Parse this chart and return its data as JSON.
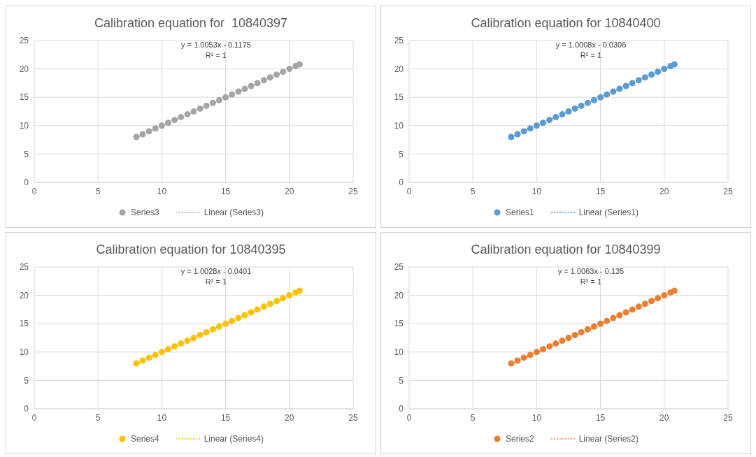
{
  "chart_data": [
    {
      "type": "scatter",
      "title": "Calibration equation for  10840397",
      "annotations": [
        "y = 1.0053x - 0.1175",
        "R² = 1"
      ],
      "xlim": [
        0,
        25
      ],
      "ylim": [
        0,
        25
      ],
      "xticks": [
        0,
        5,
        10,
        15,
        20,
        25
      ],
      "yticks": [
        0,
        5,
        10,
        15,
        20,
        25
      ],
      "grid": true,
      "legend": "bottom",
      "series": [
        {
          "name": "Series3",
          "marker": "circle",
          "color": "#a5a5a5",
          "x": [
            8,
            8.5,
            9,
            9.5,
            10,
            10.5,
            11,
            11.5,
            12,
            12.5,
            13,
            13.5,
            14,
            14.5,
            15,
            15.5,
            16,
            16.5,
            17,
            17.5,
            18,
            18.5,
            19,
            19.5,
            20,
            20.5,
            20.8
          ],
          "values": [
            8,
            8.5,
            9,
            9.5,
            10,
            10.5,
            11,
            11.5,
            12,
            12.5,
            13,
            13.5,
            14,
            14.5,
            15,
            15.5,
            16,
            16.5,
            17,
            17.5,
            18,
            18.5,
            19,
            19.5,
            20,
            20.5,
            20.8
          ]
        },
        {
          "name": "Linear (Series3)",
          "type": "line",
          "line_style": "dotted",
          "color": "#a5a5a5",
          "x": [
            8,
            20.8
          ],
          "values": [
            7.9,
            20.8
          ]
        }
      ]
    },
    {
      "type": "scatter",
      "title": "Calibration equation for 10840400",
      "annotations": [
        "y = 1.0008x - 0.0306",
        "R² = 1"
      ],
      "xlim": [
        0,
        25
      ],
      "ylim": [
        0,
        25
      ],
      "xticks": [
        0,
        5,
        10,
        15,
        20,
        25
      ],
      "yticks": [
        0,
        5,
        10,
        15,
        20,
        25
      ],
      "grid": true,
      "legend": "bottom",
      "series": [
        {
          "name": "Series1",
          "marker": "circle",
          "color": "#5b9bd5",
          "x": [
            8,
            8.5,
            9,
            9.5,
            10,
            10.5,
            11,
            11.5,
            12,
            12.5,
            13,
            13.5,
            14,
            14.5,
            15,
            15.5,
            16,
            16.5,
            17,
            17.5,
            18,
            18.5,
            19,
            19.5,
            20,
            20.5,
            20.8
          ],
          "values": [
            8,
            8.5,
            9,
            9.5,
            10,
            10.5,
            11,
            11.5,
            12,
            12.5,
            13,
            13.5,
            14,
            14.5,
            15,
            15.5,
            16,
            16.5,
            17,
            17.5,
            18,
            18.5,
            19,
            19.5,
            20,
            20.5,
            20.8
          ]
        },
        {
          "name": "Linear (Series1)",
          "type": "line",
          "line_style": "dotted",
          "color": "#5b9bd5",
          "x": [
            8,
            20.8
          ],
          "values": [
            8,
            20.8
          ]
        }
      ]
    },
    {
      "type": "scatter",
      "title": "Calibration equation for 10840395",
      "annotations": [
        "y = 1.0028x - 0.0401",
        "R² = 1"
      ],
      "xlim": [
        0,
        25
      ],
      "ylim": [
        0,
        25
      ],
      "xticks": [
        0,
        5,
        10,
        15,
        20,
        25
      ],
      "yticks": [
        0,
        5,
        10,
        15,
        20,
        25
      ],
      "grid": true,
      "legend": "bottom",
      "series": [
        {
          "name": "Series4",
          "marker": "circle",
          "color": "#ffc000",
          "x": [
            8,
            8.5,
            9,
            9.5,
            10,
            10.5,
            11,
            11.5,
            12,
            12.5,
            13,
            13.5,
            14,
            14.5,
            15,
            15.5,
            16,
            16.5,
            17,
            17.5,
            18,
            18.5,
            19,
            19.5,
            20,
            20.5,
            20.8
          ],
          "values": [
            8,
            8.5,
            9,
            9.5,
            10,
            10.5,
            11,
            11.5,
            12,
            12.5,
            13,
            13.5,
            14,
            14.5,
            15,
            15.5,
            16,
            16.5,
            17,
            17.5,
            18,
            18.5,
            19,
            19.5,
            20,
            20.5,
            20.8
          ]
        },
        {
          "name": "Linear (Series4)",
          "type": "line",
          "line_style": "dotted",
          "color": "#ffc000",
          "x": [
            8,
            20.8
          ],
          "values": [
            8,
            20.8
          ]
        }
      ]
    },
    {
      "type": "scatter",
      "title": "Calibration equation for 10840399",
      "annotations": [
        "y = 1.0063x - 0.135",
        "R² = 1"
      ],
      "xlim": [
        0,
        25
      ],
      "ylim": [
        0,
        25
      ],
      "xticks": [
        0,
        5,
        10,
        15,
        20,
        25
      ],
      "yticks": [
        0,
        5,
        10,
        15,
        20,
        25
      ],
      "grid": true,
      "legend": "bottom",
      "series": [
        {
          "name": "Series2",
          "marker": "circle",
          "color": "#ed7d31",
          "x": [
            8,
            8.5,
            9,
            9.5,
            10,
            10.5,
            11,
            11.5,
            12,
            12.5,
            13,
            13.5,
            14,
            14.5,
            15,
            15.5,
            16,
            16.5,
            17,
            17.5,
            18,
            18.5,
            19,
            19.5,
            20,
            20.5,
            20.8
          ],
          "values": [
            8,
            8.5,
            9,
            9.5,
            10,
            10.5,
            11,
            11.5,
            12,
            12.5,
            13,
            13.5,
            14,
            14.5,
            15,
            15.5,
            16,
            16.5,
            17,
            17.5,
            18,
            18.5,
            19,
            19.5,
            20,
            20.5,
            20.8
          ]
        },
        {
          "name": "Linear (Series2)",
          "type": "line",
          "line_style": "dotted",
          "color": "#ed7d31",
          "x": [
            8,
            20.8
          ],
          "values": [
            7.9,
            20.8
          ]
        }
      ]
    }
  ]
}
